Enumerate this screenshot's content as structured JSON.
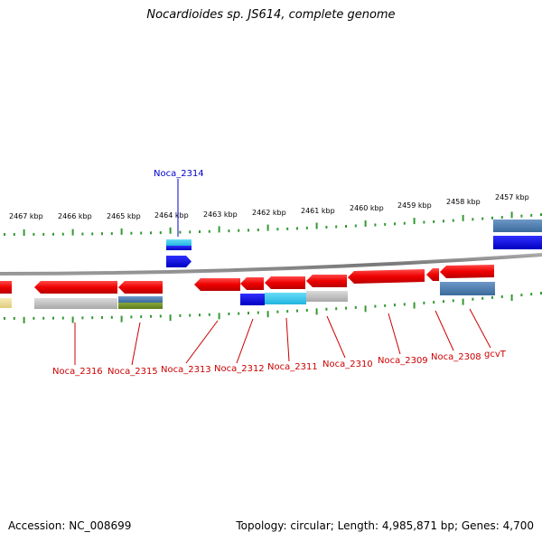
{
  "header": {
    "title": "Nocardioides sp. JS614, complete genome"
  },
  "footer": {
    "accession": "Accession: NC_008699",
    "summary": "Topology: circular; Length: 4,985,871 bp; Genes: 4,700"
  },
  "colors": {
    "forward_gene": "#dd0000",
    "backbone": "#888888",
    "tick": "#339933",
    "label_red": "#cc0000",
    "label_blue": "#0000cc",
    "cog_blue": "#0000ee",
    "cog_cyan": "#33ccee",
    "cog_steel": "#4a7ab0",
    "cog_gray": "#b8b8b8",
    "cog_olive": "#6b8e23",
    "cog_beige": "#f0e0a0"
  },
  "scale": {
    "unit": "kbp",
    "ticks": [
      {
        "label": "2467 kbp"
      },
      {
        "label": "2466 kbp"
      },
      {
        "label": "2465 kbp"
      },
      {
        "label": "2464 kbp"
      },
      {
        "label": "2463 kbp"
      },
      {
        "label": "2462 kbp"
      },
      {
        "label": "2461 kbp"
      },
      {
        "label": "2460 kbp"
      },
      {
        "label": "2459 kbp"
      },
      {
        "label": "2458 kbp"
      },
      {
        "label": "2457 kbp"
      }
    ]
  },
  "genes": [
    {
      "label": "Noca_2316"
    },
    {
      "label": "Noca_2315"
    },
    {
      "label": "Noca_2313"
    },
    {
      "label": "Noca_2312"
    },
    {
      "label": "Noca_2311"
    },
    {
      "label": "Noca_2310"
    },
    {
      "label": "Noca_2309"
    },
    {
      "label": "Noca_2308"
    },
    {
      "label": "gcvT"
    },
    {
      "label": "Noca_2314"
    }
  ]
}
